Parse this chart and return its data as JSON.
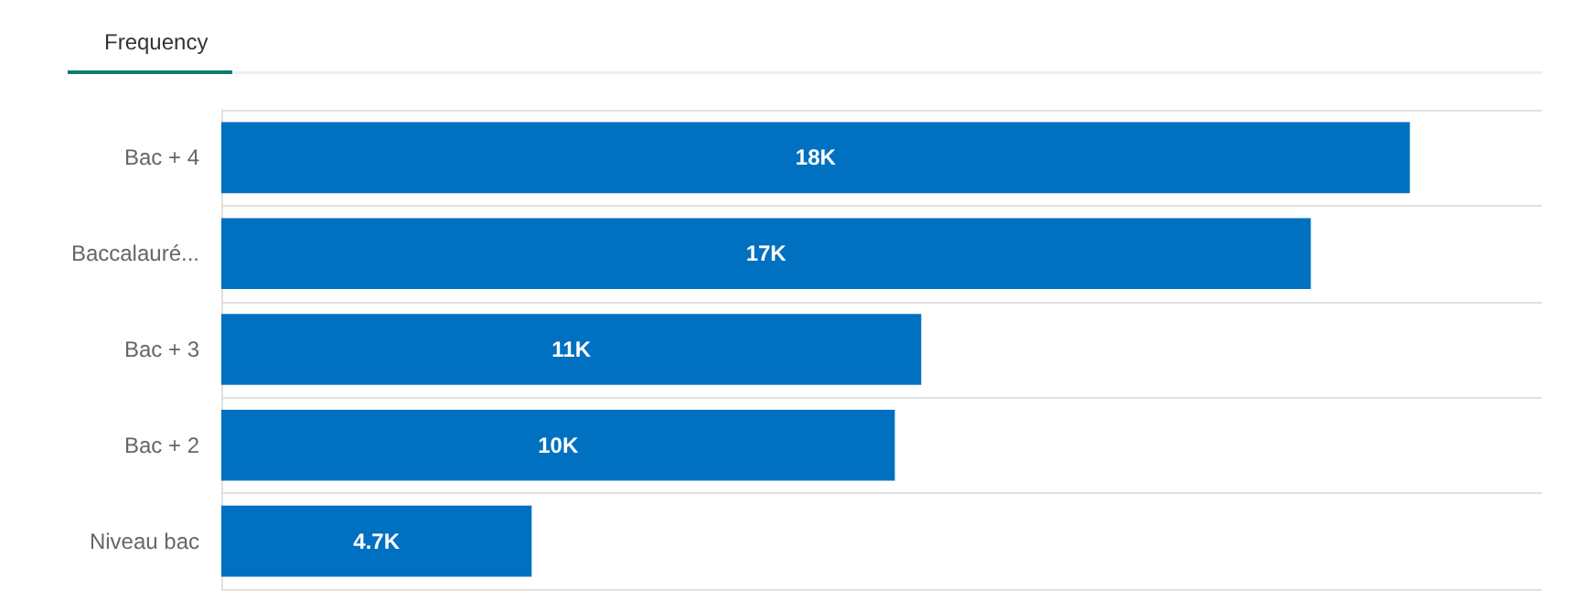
{
  "chart_data": {
    "type": "bar",
    "orientation": "horizontal",
    "title": "Frequency",
    "categories": [
      "Bac + 4",
      "Baccalauré...",
      "Bac + 3",
      "Bac + 2",
      "Niveau bac"
    ],
    "values": [
      18,
      16.5,
      10.6,
      10.2,
      4.7
    ],
    "value_labels": [
      "18K",
      "17K",
      "11K",
      "10K",
      "4.7K"
    ],
    "color": "#0070c0",
    "xlim": [
      0,
      20
    ],
    "tick_labels": "y",
    "grid": "y"
  }
}
